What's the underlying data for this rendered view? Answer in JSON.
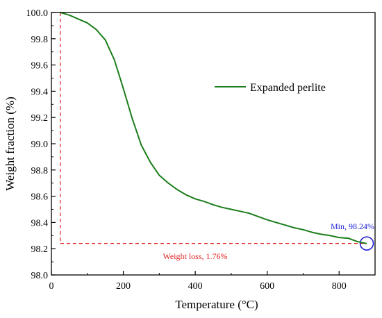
{
  "chart_data": {
    "type": "line",
    "xlabel": "Temperature (°C)",
    "ylabel": "Weight fraction (%)",
    "xlim": [
      0,
      900
    ],
    "ylim": [
      98.0,
      100.0
    ],
    "xticks": [
      0,
      200,
      400,
      600,
      800
    ],
    "xtick_labels": [
      "0",
      "200",
      "400",
      "600",
      "800"
    ],
    "yticks": [
      98.0,
      98.2,
      98.4,
      98.6,
      98.8,
      99.0,
      99.2,
      99.4,
      99.6,
      99.8,
      100.0
    ],
    "ytick_labels": [
      "98.0",
      "98.2",
      "98.4",
      "98.6",
      "98.8",
      "99.0",
      "99.2",
      "99.4",
      "99.6",
      "99.8",
      "100.0"
    ],
    "grid": false,
    "legend_position": "upper-right",
    "series": [
      {
        "name": "Expanded perlite",
        "color": "#1a7d1a",
        "x": [
          25,
          50,
          75,
          100,
          125,
          150,
          175,
          200,
          225,
          250,
          275,
          300,
          325,
          350,
          375,
          400,
          425,
          450,
          475,
          500,
          525,
          550,
          575,
          600,
          625,
          650,
          675,
          700,
          725,
          750,
          775,
          800,
          825,
          850,
          875
        ],
        "y": [
          100.0,
          99.98,
          99.95,
          99.92,
          99.87,
          99.79,
          99.64,
          99.42,
          99.19,
          98.99,
          98.86,
          98.76,
          98.7,
          98.65,
          98.61,
          98.58,
          98.56,
          98.535,
          98.515,
          98.5,
          98.485,
          98.47,
          98.445,
          98.42,
          98.4,
          98.38,
          98.36,
          98.345,
          98.325,
          98.31,
          98.3,
          98.285,
          98.28,
          98.255,
          98.24
        ]
      }
    ],
    "annotations": {
      "min_label": "Min, 98.24%",
      "min_color": "#1f1fd6",
      "min_point": {
        "x": 875,
        "y": 98.24
      },
      "loss_label": "Weight loss, 1.76%",
      "loss_color": "#e02020",
      "guide_x": 25,
      "guide_y_top": 100.0,
      "guide_y_bottom": 98.24
    }
  }
}
